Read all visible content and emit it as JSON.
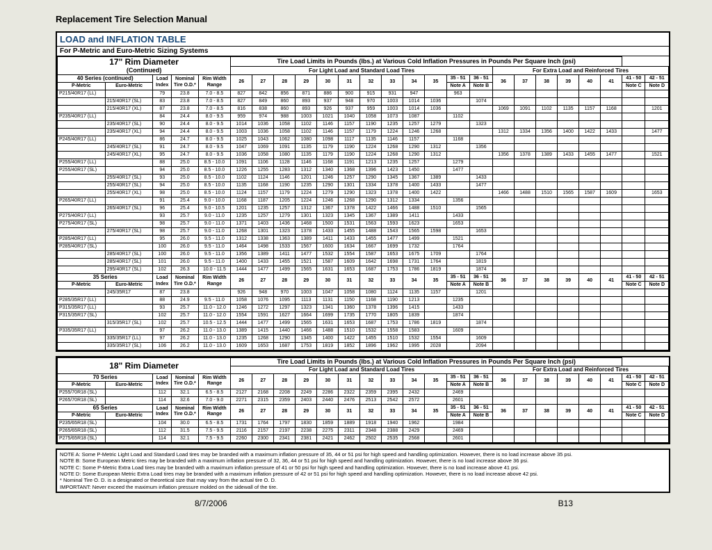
{
  "doc_title": "Replacement Tire Selection Manual",
  "table_title": "LOAD and INFLATION TABLE",
  "table_subtitle": "For P-Metric and Euro-Metric Sizing Systems",
  "rim17_title": "17\" Rim Diameter",
  "rim17_sub": "(Continued)",
  "rim18_title": "18\" Rim Diameter",
  "span_title": "Tire Load Limits in Pounds (lbs.) at Various Cold Inflation Pressures in Pounds Per Square Inch (psi)",
  "light_title": "For Light Load and Standard Load Tires",
  "extra_title": "For Extra Load and Reinforced Tires",
  "col_labels": {
    "pmetric": "P-Metric",
    "eurometric": "Euro-Metric",
    "load_index": "Load Index",
    "nominal": "Nominal Tire O.D.*",
    "rim_width": "Rim Width Range",
    "noteA": "Note A",
    "noteB": "Note B",
    "noteC": "Note C",
    "noteD": "Note D",
    "r35_51": "35 - 51",
    "r36_51": "36 - 51",
    "r41_50": "41 - 50",
    "r42_51": "42 - 51"
  },
  "psi_light": [
    "26",
    "27",
    "28",
    "29",
    "30",
    "31",
    "32",
    "33",
    "34",
    "35"
  ],
  "psi_extra": [
    "36",
    "37",
    "38",
    "39",
    "40",
    "41"
  ],
  "series40_title": "40 Series (continued)",
  "rows40": [
    {
      "pm": "P215/40R17 (LL)",
      "em": "",
      "li": "79",
      "od": "23.8",
      "rw": "7.0 - 8.5",
      "l": [
        "827",
        "842",
        "856",
        "871",
        "886",
        "900",
        "915",
        "931",
        "947",
        ""
      ],
      "na": "963",
      "nb": "",
      "x": [
        "",
        "",
        "",
        "",
        "",
        ""
      ],
      "nc": "",
      "nd": ""
    },
    {
      "pm": "",
      "em": "215/40R17 (SL)",
      "li": "83",
      "od": "23.8",
      "rw": "7.0 - 8.5",
      "l": [
        "827",
        "849",
        "860",
        "893",
        "937",
        "948",
        "970",
        "1003",
        "1014",
        "1036"
      ],
      "na": "",
      "nb": "1074",
      "x": [
        "",
        "",
        "",
        "",
        "",
        ""
      ],
      "nc": "",
      "nd": ""
    },
    {
      "pm": "",
      "em": "215/40R17 (XL)",
      "li": "87",
      "od": "23.8",
      "rw": "7.0 - 8.5",
      "l": [
        "816",
        "838",
        "860",
        "893",
        "926",
        "937",
        "959",
        "1003",
        "1014",
        "1036"
      ],
      "na": "",
      "nb": "",
      "x": [
        "1069",
        "1091",
        "1102",
        "1135",
        "1157",
        "1168"
      ],
      "nc": "",
      "nd": "1201"
    },
    {
      "pm": "P235/40R17 (LL)",
      "em": "",
      "li": "84",
      "od": "24.4",
      "rw": "8.0 - 9.5",
      "l": [
        "959",
        "974",
        "988",
        "1003",
        "1021",
        "1040",
        "1058",
        "1073",
        "1087",
        ""
      ],
      "na": "1102",
      "nb": "",
      "x": [
        "",
        "",
        "",
        "",
        "",
        ""
      ],
      "nc": "",
      "nd": ""
    },
    {
      "pm": "",
      "em": "235/40R17 (SL)",
      "li": "90",
      "od": "24.4",
      "rw": "8.0 - 9.5",
      "l": [
        "1014",
        "1036",
        "1058",
        "1102",
        "1146",
        "1157",
        "1190",
        "1235",
        "1257",
        "1279"
      ],
      "na": "",
      "nb": "1323",
      "x": [
        "",
        "",
        "",
        "",
        "",
        ""
      ],
      "nc": "",
      "nd": ""
    },
    {
      "pm": "",
      "em": "235/40R17 (XL)",
      "li": "94",
      "od": "24.4",
      "rw": "8.0 - 9.5",
      "l": [
        "1003",
        "1036",
        "1058",
        "1102",
        "1146",
        "1157",
        "1179",
        "1224",
        "1246",
        "1268"
      ],
      "na": "",
      "nb": "",
      "x": [
        "1312",
        "1334",
        "1356",
        "1400",
        "1422",
        "1433"
      ],
      "nc": "",
      "nd": "1477"
    },
    {
      "pm": "P245/40R17 (LL)",
      "em": "",
      "li": "86",
      "od": "24.7",
      "rw": "8.0 - 9.5",
      "l": [
        "1025",
        "1043",
        "1062",
        "1080",
        "1098",
        "1117",
        "1135",
        "1146",
        "1157",
        ""
      ],
      "na": "1168",
      "nb": "",
      "x": [
        "",
        "",
        "",
        "",
        "",
        ""
      ],
      "nc": "",
      "nd": ""
    },
    {
      "pm": "",
      "em": "245/40R17 (SL)",
      "li": "91",
      "od": "24.7",
      "rw": "8.0 - 9.5",
      "l": [
        "1047",
        "1069",
        "1091",
        "1135",
        "1179",
        "1190",
        "1224",
        "1268",
        "1290",
        "1312"
      ],
      "na": "",
      "nb": "1356",
      "x": [
        "",
        "",
        "",
        "",
        "",
        ""
      ],
      "nc": "",
      "nd": ""
    },
    {
      "pm": "",
      "em": "245/40R17 (XL)",
      "li": "95",
      "od": "24.7",
      "rw": "8.0 - 9.5",
      "l": [
        "1036",
        "1058",
        "1080",
        "1135",
        "1179",
        "1190",
        "1224",
        "1268",
        "1290",
        "1312"
      ],
      "na": "",
      "nb": "",
      "x": [
        "1356",
        "1378",
        "1389",
        "1433",
        "1455",
        "1477"
      ],
      "nc": "",
      "nd": "1521"
    },
    {
      "pm": "P255/40R17 (LL)",
      "em": "",
      "li": "88",
      "od": "25.0",
      "rw": "8.5 - 10.0",
      "l": [
        "1091",
        "1106",
        "1128",
        "1146",
        "1168",
        "1191",
        "1213",
        "1235",
        "1257",
        ""
      ],
      "na": "1279",
      "nb": "",
      "x": [
        "",
        "",
        "",
        "",
        "",
        ""
      ],
      "nc": "",
      "nd": ""
    },
    {
      "pm": "P255/40R17 (SL)",
      "em": "",
      "li": "94",
      "od": "25.0",
      "rw": "8.5 - 10.0",
      "l": [
        "1226",
        "1255",
        "1283",
        "1312",
        "1340",
        "1368",
        "1396",
        "1423",
        "1450",
        ""
      ],
      "na": "1477",
      "nb": "",
      "x": [
        "",
        "",
        "",
        "",
        "",
        ""
      ],
      "nc": "",
      "nd": ""
    },
    {
      "pm": "",
      "em": "255/40R17 (SL)",
      "li": "93",
      "od": "25.0",
      "rw": "8.5 - 10.0",
      "l": [
        "1102",
        "1124",
        "1146",
        "1201",
        "1246",
        "1257",
        "1290",
        "1345",
        "1367",
        "1389"
      ],
      "na": "",
      "nb": "1433",
      "x": [
        "",
        "",
        "",
        "",
        "",
        ""
      ],
      "nc": "",
      "nd": ""
    },
    {
      "pm": "",
      "em": "255/40R17 (SL)",
      "li": "94",
      "od": "25.0",
      "rw": "8.5 - 10.0",
      "l": [
        "1135",
        "1168",
        "1190",
        "1235",
        "1290",
        "1301",
        "1334",
        "1378",
        "1400",
        "1433"
      ],
      "na": "",
      "nb": "1477",
      "x": [
        "",
        "",
        "",
        "",
        "",
        ""
      ],
      "nc": "",
      "nd": ""
    },
    {
      "pm": "",
      "em": "255/40R17 (XL)",
      "li": "98",
      "od": "25.0",
      "rw": "8.5 - 10.0",
      "l": [
        "1124",
        "1157",
        "1179",
        "1224",
        "1279",
        "1290",
        "1323",
        "1378",
        "1400",
        "1422"
      ],
      "na": "",
      "nb": "",
      "x": [
        "1466",
        "1488",
        "1510",
        "1565",
        "1587",
        "1609"
      ],
      "nc": "",
      "nd": "1653"
    },
    {
      "pm": "P265/40R17 (LL)",
      "em": "",
      "li": "91",
      "od": "25.4",
      "rw": "9.0 - 10.0",
      "l": [
        "1168",
        "1187",
        "1205",
        "1224",
        "1246",
        "1268",
        "1290",
        "1312",
        "1334",
        ""
      ],
      "na": "1356",
      "nb": "",
      "x": [
        "",
        "",
        "",
        "",
        "",
        ""
      ],
      "nc": "",
      "nd": ""
    },
    {
      "pm": "",
      "em": "265/40R17 (SL)",
      "li": "96",
      "od": "25.4",
      "rw": "9.0 - 10.5",
      "l": [
        "1201",
        "1235",
        "1257",
        "1312",
        "1367",
        "1378",
        "1422",
        "1466",
        "1488",
        "1510"
      ],
      "na": "",
      "nb": "1565",
      "x": [
        "",
        "",
        "",
        "",
        "",
        ""
      ],
      "nc": "",
      "nd": ""
    },
    {
      "pm": "P275/40R17 (LL)",
      "em": "",
      "li": "93",
      "od": "25.7",
      "rw": "9.0 - 11.0",
      "l": [
        "1235",
        "1257",
        "1279",
        "1301",
        "1323",
        "1345",
        "1367",
        "1389",
        "1411",
        ""
      ],
      "na": "1433",
      "nb": "",
      "x": [
        "",
        "",
        "",
        "",
        "",
        ""
      ],
      "nc": "",
      "nd": ""
    },
    {
      "pm": "P275/40R17 (SL)",
      "em": "",
      "li": "98",
      "od": "25.7",
      "rw": "9.0 - 11.0",
      "l": [
        "1371",
        "1403",
        "1436",
        "1468",
        "1500",
        "1531",
        "1563",
        "1593",
        "1623",
        ""
      ],
      "na": "1653",
      "nb": "",
      "x": [
        "",
        "",
        "",
        "",
        "",
        ""
      ],
      "nc": "",
      "nd": ""
    },
    {
      "pm": "",
      "em": "275/40R17 (SL)",
      "li": "98",
      "od": "25.7",
      "rw": "9.0 - 11.0",
      "l": [
        "1268",
        "1301",
        "1323",
        "1378",
        "1433",
        "1455",
        "1488",
        "1543",
        "1565",
        "1598"
      ],
      "na": "",
      "nb": "1653",
      "x": [
        "",
        "",
        "",
        "",
        "",
        ""
      ],
      "nc": "",
      "nd": ""
    },
    {
      "pm": "P285/40R17 (LL)",
      "em": "",
      "li": "95",
      "od": "26.0",
      "rw": "9.5 - 11.0",
      "l": [
        "1312",
        "1338",
        "1363",
        "1389",
        "1411",
        "1433",
        "1455",
        "1477",
        "1499",
        ""
      ],
      "na": "1521",
      "nb": "",
      "x": [
        "",
        "",
        "",
        "",
        "",
        ""
      ],
      "nc": "",
      "nd": ""
    },
    {
      "pm": "P285/40R17 (SL)",
      "em": "",
      "li": "100",
      "od": "26.0",
      "rw": "9.5 - 11.0",
      "l": [
        "1464",
        "1498",
        "1533",
        "1567",
        "1600",
        "1634",
        "1667",
        "1699",
        "1732",
        ""
      ],
      "na": "1764",
      "nb": "",
      "x": [
        "",
        "",
        "",
        "",
        "",
        ""
      ],
      "nc": "",
      "nd": ""
    },
    {
      "pm": "",
      "em": "285/40R17 (SL)",
      "li": "100",
      "od": "26.0",
      "rw": "9.5 - 11.0",
      "l": [
        "1356",
        "1389",
        "1411",
        "1477",
        "1532",
        "1554",
        "1587",
        "1653",
        "1675",
        "1709"
      ],
      "na": "",
      "nb": "1764",
      "x": [
        "",
        "",
        "",
        "",
        "",
        ""
      ],
      "nc": "",
      "nd": ""
    },
    {
      "pm": "",
      "em": "285/40R17 (SL)",
      "li": "101",
      "od": "26.0",
      "rw": "9.5 - 11.0",
      "l": [
        "1400",
        "1433",
        "1455",
        "1521",
        "1587",
        "1609",
        "1642",
        "1698",
        "1731",
        "1764"
      ],
      "na": "",
      "nb": "1819",
      "x": [
        "",
        "",
        "",
        "",
        "",
        ""
      ],
      "nc": "",
      "nd": ""
    },
    {
      "pm": "",
      "em": "295/40R17 (SL)",
      "li": "102",
      "od": "26.3",
      "rw": "10.0 - 11.5",
      "l": [
        "1444",
        "1477",
        "1499",
        "1565",
        "1631",
        "1653",
        "1687",
        "1753",
        "1786",
        "1819"
      ],
      "na": "",
      "nb": "1874",
      "x": [
        "",
        "",
        "",
        "",
        "",
        ""
      ],
      "nc": "",
      "nd": ""
    }
  ],
  "series35_title": "35 Series",
  "rows35": [
    {
      "pm": "",
      "em": "245/35R17",
      "li": "87",
      "od": "23.8",
      "rw": "",
      "l": [
        "926",
        "948",
        "970",
        "1003",
        "1047",
        "1058",
        "1080",
        "1124",
        "1135",
        "1157"
      ],
      "na": "",
      "nb": "1201",
      "x": [
        "",
        "",
        "",
        "",
        "",
        ""
      ],
      "nc": "",
      "nd": ""
    },
    {
      "pm": "P285/35R17 (LL)",
      "em": "",
      "li": "88",
      "od": "24.9",
      "rw": "9.5 - 11.0",
      "l": [
        "1058",
        "1076",
        "1095",
        "1113",
        "1131",
        "1150",
        "1168",
        "1190",
        "1213",
        ""
      ],
      "na": "1235",
      "nb": "",
      "x": [
        "",
        "",
        "",
        "",
        "",
        ""
      ],
      "nc": "",
      "nd": ""
    },
    {
      "pm": "P315/35R17 (LL)",
      "em": "",
      "li": "93",
      "od": "25.7",
      "rw": "11.0 - 12.0",
      "l": [
        "1246",
        "1272",
        "1297",
        "1323",
        "1341",
        "1360",
        "1378",
        "1396",
        "1415",
        ""
      ],
      "na": "1433",
      "nb": "",
      "x": [
        "",
        "",
        "",
        "",
        "",
        ""
      ],
      "nc": "",
      "nd": ""
    },
    {
      "pm": "P315/35R17 (SL)",
      "em": "",
      "li": "102",
      "od": "25.7",
      "rw": "11.0 - 12.0",
      "l": [
        "1554",
        "1591",
        "1627",
        "1664",
        "1699",
        "1735",
        "1770",
        "1805",
        "1839",
        ""
      ],
      "na": "1874",
      "nb": "",
      "x": [
        "",
        "",
        "",
        "",
        "",
        ""
      ],
      "nc": "",
      "nd": ""
    },
    {
      "pm": "",
      "em": "315/35R17 (SL)",
      "li": "102",
      "od": "25.7",
      "rw": "10.5 - 12.5",
      "l": [
        "1444",
        "1477",
        "1499",
        "1565",
        "1631",
        "1653",
        "1687",
        "1753",
        "1786",
        "1819"
      ],
      "na": "",
      "nb": "1874",
      "x": [
        "",
        "",
        "",
        "",
        "",
        ""
      ],
      "nc": "",
      "nd": ""
    },
    {
      "pm": "P335/35R17 (LL)",
      "em": "",
      "li": "97",
      "od": "26.2",
      "rw": "11.0 - 13.0",
      "l": [
        "1389",
        "1415",
        "1440",
        "1466",
        "1488",
        "1510",
        "1532",
        "1558",
        "1583",
        ""
      ],
      "na": "1609",
      "nb": "",
      "x": [
        "",
        "",
        "",
        "",
        "",
        ""
      ],
      "nc": "",
      "nd": ""
    },
    {
      "pm": "",
      "em": "335/35R17 (LL)",
      "li": "97",
      "od": "26.2",
      "rw": "11.0 - 13.0",
      "l": [
        "1235",
        "1268",
        "1290",
        "1345",
        "1400",
        "1422",
        "1455",
        "1510",
        "1532",
        "1554"
      ],
      "na": "",
      "nb": "1609",
      "x": [
        "",
        "",
        "",
        "",
        "",
        ""
      ],
      "nc": "",
      "nd": ""
    },
    {
      "pm": "",
      "em": "335/35R17 (SL)",
      "li": "106",
      "od": "26.2",
      "rw": "11.0 - 13.0",
      "l": [
        "1609",
        "1653",
        "1687",
        "1753",
        "1819",
        "1852",
        "1896",
        "1962",
        "1995",
        "2028"
      ],
      "na": "",
      "nb": "2094",
      "x": [
        "",
        "",
        "",
        "",
        "",
        ""
      ],
      "nc": "",
      "nd": ""
    }
  ],
  "series70_title": "70 Series",
  "rows70": [
    {
      "pm": "P255/70R18 (SL)",
      "em": "",
      "li": "112",
      "od": "32.1",
      "rw": "6.5 - 8.5",
      "l": [
        "2127",
        "2168",
        "2208",
        "2249",
        "2286",
        "2322",
        "2359",
        "2395",
        "2432",
        ""
      ],
      "na": "2469",
      "nb": "",
      "x": [
        "",
        "",
        "",
        "",
        "",
        ""
      ],
      "nc": "",
      "nd": ""
    },
    {
      "pm": "P265/70R18 (SL)",
      "em": "",
      "li": "114",
      "od": "32.6",
      "rw": "7.0 - 9.0",
      "l": [
        "2271",
        "2315",
        "2359",
        "2403",
        "2440",
        "2476",
        "2513",
        "2542",
        "2572",
        ""
      ],
      "na": "2601",
      "nb": "",
      "x": [
        "",
        "",
        "",
        "",
        "",
        ""
      ],
      "nc": "",
      "nd": ""
    }
  ],
  "series65_title": "65 Series",
  "rows65": [
    {
      "pm": "P235/65R18 (SL)",
      "em": "",
      "li": "104",
      "od": "30.0",
      "rw": "6.5 - 8.5",
      "l": [
        "1731",
        "1764",
        "1797",
        "1830",
        "1859",
        "1889",
        "1918",
        "1940",
        "1962",
        ""
      ],
      "na": "1984",
      "nb": "",
      "x": [
        "",
        "",
        "",
        "",
        "",
        ""
      ],
      "nc": "",
      "nd": ""
    },
    {
      "pm": "P265/65R18 (SL)",
      "em": "",
      "li": "112",
      "od": "31.5",
      "rw": "7.5 - 9.5",
      "l": [
        "2116",
        "2157",
        "2197",
        "2238",
        "2275",
        "2311",
        "2348",
        "2388",
        "2429",
        ""
      ],
      "na": "2469",
      "nb": "",
      "x": [
        "",
        "",
        "",
        "",
        "",
        ""
      ],
      "nc": "",
      "nd": ""
    },
    {
      "pm": "P275/65R18 (SL)",
      "em": "",
      "li": "114",
      "od": "32.1",
      "rw": "7.5 - 9.5",
      "l": [
        "2260",
        "2300",
        "2341",
        "2381",
        "2421",
        "2462",
        "2502",
        "2535",
        "2568",
        ""
      ],
      "na": "2601",
      "nb": "",
      "x": [
        "",
        "",
        "",
        "",
        "",
        ""
      ],
      "nc": "",
      "nd": ""
    }
  ],
  "notes": [
    "NOTE A: Some P-Metric Light Load and Standard Load tires may be branded with a maximum inflation pressure of 35, 44 or 51 psi for high speed and handling optimization. However, there is no load increase above 35 psi.",
    "NOTE B: Some European Metric tires may be branded with a maximum inflation pressure of 32, 36, 44 or 51 psi for high speed and handling optimization. However, there is no load increase above 36 psi.",
    "NOTE C: Some P-Metric Extra Load tires may be branded with a maximum inflation pressure of 41 or 50 psi for high speed and handling optimization. However, there is no load increase above 41 psi.",
    "NOTE D: Some European Metric Extra Load tires may be branded with a maximum inflation pressure of 42 or 51 psi for high speed and handling optimization. However, there is no load increase above 42 psi.",
    "* Nominal Tire O. D. is a designated or theoretical size that may vary from the actual tire O. D.",
    "IMPORTANT: Never exceed the maximum inflation pressure molded on the sidewall of the tire."
  ],
  "footer_date": "8/7/2006",
  "footer_page": "B13"
}
